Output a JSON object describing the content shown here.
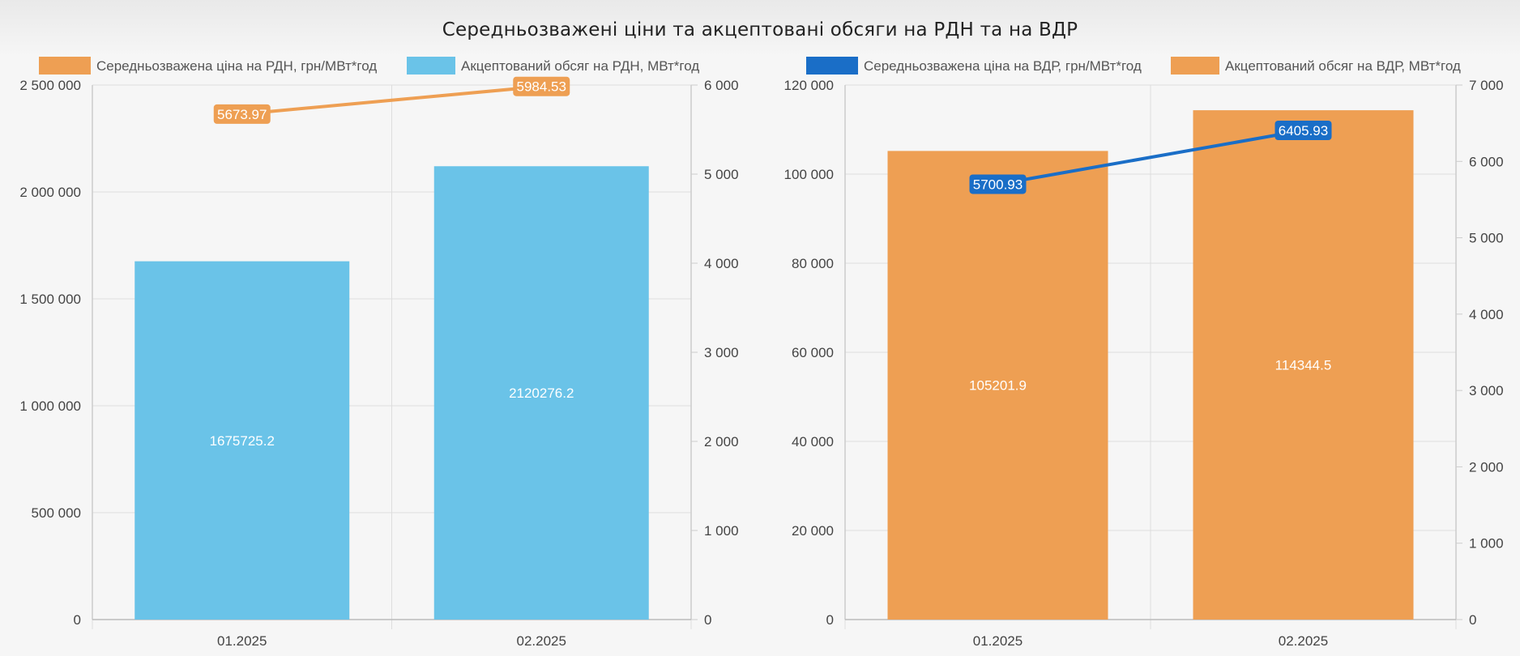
{
  "page": {
    "title": "Середньозважені ціни та акцептовані обсяги на РДН та на ВДР"
  },
  "colors": {
    "orange": "#ee9f53",
    "light_blue": "#6ac3e8",
    "dark_blue": "#1a6ec7",
    "grid": "#dddddd",
    "axis_text": "#444444",
    "legend_text": "#555555"
  },
  "chart_data": [
    {
      "type": "bar",
      "categories": [
        "01.2025",
        "02.2025"
      ],
      "series": [
        {
          "name": "Середньозважена ціна на РДН, грн/МВт*год",
          "type": "line",
          "axis": "right",
          "color": "#ee9f53",
          "values": [
            5673.97,
            5984.53
          ],
          "labels": [
            "5673.97",
            "5984.53"
          ]
        },
        {
          "name": "Акцептований обсяг на РДН, МВт*год",
          "type": "bar",
          "axis": "left",
          "color": "#6ac3e8",
          "values": [
            1675725.2,
            2120276.2
          ],
          "labels": [
            "1675725.2",
            "2120276.2"
          ]
        }
      ],
      "y_left": {
        "min": 0,
        "max": 2500000,
        "ticks": [
          0,
          500000,
          1000000,
          1500000,
          2000000,
          2500000
        ],
        "tick_labels": [
          "0",
          "500 000",
          "1 000 000",
          "1 500 000",
          "2 000 000",
          "2 500 000"
        ]
      },
      "y_right": {
        "min": 0,
        "max": 6000,
        "ticks": [
          0,
          1000,
          2000,
          3000,
          4000,
          5000,
          6000
        ],
        "tick_labels": [
          "0",
          "1 000",
          "2 000",
          "3 000",
          "4 000",
          "5 000",
          "6 000"
        ]
      },
      "grid": true,
      "legend_position": "top"
    },
    {
      "type": "bar",
      "categories": [
        "01.2025",
        "02.2025"
      ],
      "series": [
        {
          "name": "Середньозважена ціна на ВДР, грн/МВт*год",
          "type": "line",
          "axis": "right",
          "color": "#1a6ec7",
          "values": [
            5700.93,
            6405.93
          ],
          "labels": [
            "5700.93",
            "6405.93"
          ]
        },
        {
          "name": "Акцептований обсяг на ВДР, МВт*год",
          "type": "bar",
          "axis": "left",
          "color": "#ee9f53",
          "values": [
            105201.9,
            114344.5
          ],
          "labels": [
            "105201.9",
            "114344.5"
          ]
        }
      ],
      "y_left": {
        "min": 0,
        "max": 120000,
        "ticks": [
          0,
          20000,
          40000,
          60000,
          80000,
          100000,
          120000
        ],
        "tick_labels": [
          "0",
          "20 000",
          "40 000",
          "60 000",
          "80 000",
          "100 000",
          "120 000"
        ]
      },
      "y_right": {
        "min": 0,
        "max": 7000,
        "ticks": [
          0,
          1000,
          2000,
          3000,
          4000,
          5000,
          6000,
          7000
        ],
        "tick_labels": [
          "0",
          "1 000",
          "2 000",
          "3 000",
          "4 000",
          "5 000",
          "6 000",
          "7 000"
        ]
      },
      "grid": true,
      "legend_position": "top"
    }
  ]
}
